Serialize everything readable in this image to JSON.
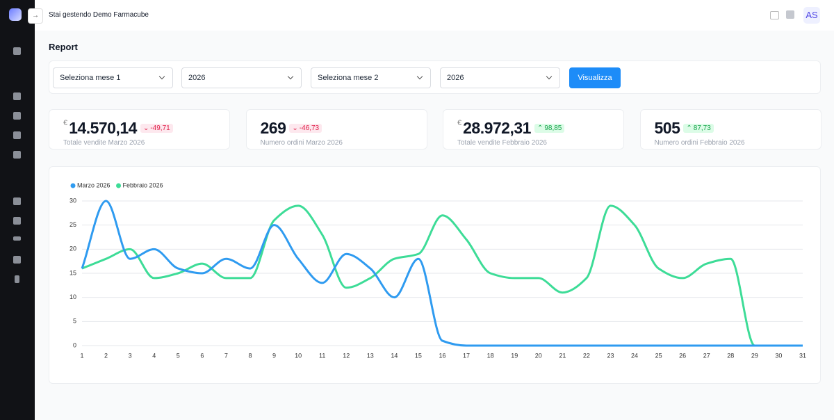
{
  "header": {
    "managing": "Stai gestendo Demo Farmacube",
    "avatar": "AS"
  },
  "page_title": "Report",
  "filters": {
    "month1": "Seleziona mese 1",
    "year1": "2026",
    "month2": "Seleziona mese 2",
    "year2": "2026",
    "button": "Visualizza"
  },
  "kpis": [
    {
      "currency": "€",
      "value": "14.570,14",
      "delta": "-49,71",
      "label": "Totale vendite Marzo 2026"
    },
    {
      "value": "269",
      "delta": "-46,73",
      "label": "Numero ordini Marzo 2026"
    },
    {
      "currency": "€",
      "value": "28.972,31",
      "delta": "98,85",
      "label": "Totale vendite Febbraio 2026"
    },
    {
      "value": "505",
      "delta": "87,73",
      "label": "Numero ordini Febbraio 2026"
    }
  ],
  "chart_data": {
    "type": "line",
    "x": [
      1,
      2,
      3,
      4,
      5,
      6,
      7,
      8,
      9,
      10,
      11,
      12,
      13,
      14,
      15,
      16,
      17,
      18,
      19,
      20,
      21,
      22,
      23,
      24,
      25,
      26,
      27,
      28,
      29,
      30,
      31
    ],
    "xlim": [
      1,
      31
    ],
    "series": [
      {
        "name": "Marzo 2026",
        "color": "#2f9bf0",
        "values": [
          16,
          30,
          18,
          20,
          16,
          15,
          18,
          16,
          25,
          18,
          13,
          19,
          16,
          10,
          18,
          1,
          0,
          0,
          0,
          0,
          0,
          0,
          0,
          0,
          0,
          0,
          0,
          0,
          0,
          0,
          0
        ]
      },
      {
        "name": "Febbraio 2026",
        "color": "#3ddc97",
        "values": [
          16,
          18,
          20,
          14,
          15,
          17,
          14,
          14,
          26,
          29,
          23,
          12,
          14,
          18,
          19,
          27,
          22,
          15,
          14,
          14,
          11,
          14,
          29,
          25,
          16,
          14,
          17,
          18,
          0,
          0,
          0
        ]
      }
    ],
    "ylim": [
      0,
      30
    ],
    "yticks": [
      0,
      5,
      10,
      15,
      20,
      25,
      30
    ],
    "grid": true,
    "legend": "top-left"
  }
}
